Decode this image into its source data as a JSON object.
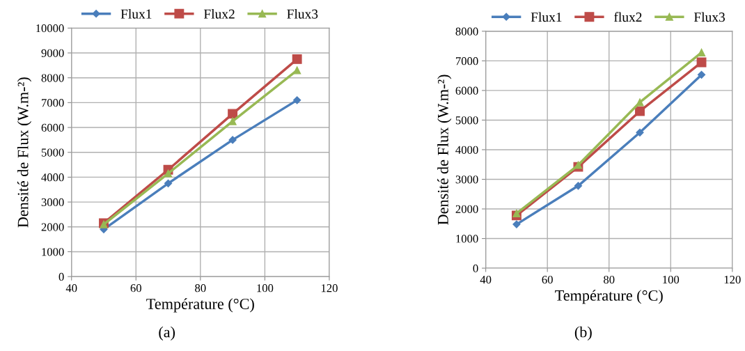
{
  "chart_data": [
    {
      "type": "line",
      "xlabel": "Température (°C)",
      "ylabel": "Densité de Flux (W.m-²)",
      "annotations": [
        "(a)"
      ],
      "x": [
        50,
        70,
        90,
        110
      ],
      "series": [
        {
          "name": "Flux1",
          "color": "#4a7ebb",
          "values": [
            1900,
            3750,
            5500,
            7100
          ],
          "marker": "diamond"
        },
        {
          "name": "Flux2",
          "color": "#be4b48",
          "values": [
            2150,
            4300,
            6550,
            8750
          ],
          "marker": "square"
        },
        {
          "name": "Flux3",
          "color": "#98b954",
          "values": [
            2100,
            4150,
            6250,
            8300
          ],
          "marker": "triangle"
        }
      ],
      "xlim": [
        40,
        120
      ],
      "xticks": [
        40,
        60,
        80,
        100,
        120
      ],
      "ylim": [
        0,
        10000
      ],
      "yticks": [
        0,
        1000,
        2000,
        3000,
        4000,
        5000,
        6000,
        7000,
        8000,
        9000,
        10000
      ],
      "grid": true,
      "legend": "top",
      "line_style": "solid"
    },
    {
      "type": "line",
      "xlabel": "Température (°C)",
      "ylabel": "Densité de Flux (W.m-²)",
      "annotations": [
        "(b)"
      ],
      "x": [
        50,
        70,
        90,
        110
      ],
      "series": [
        {
          "name": "Flux1",
          "color": "#4a7ebb",
          "values": [
            1480,
            2780,
            4580,
            6530
          ],
          "marker": "diamond"
        },
        {
          "name": "flux2",
          "color": "#be4b48",
          "values": [
            1780,
            3420,
            5300,
            6950
          ],
          "marker": "square"
        },
        {
          "name": "Flux3",
          "color": "#98b954",
          "values": [
            1850,
            3480,
            5600,
            7280
          ],
          "marker": "triangle"
        }
      ],
      "xlim": [
        40,
        120
      ],
      "xticks": [
        40,
        60,
        80,
        100,
        120
      ],
      "ylim": [
        0,
        8000
      ],
      "yticks": [
        0,
        1000,
        2000,
        3000,
        4000,
        5000,
        6000,
        7000,
        8000
      ],
      "grid": true,
      "legend": "top",
      "line_style": "solid"
    }
  ]
}
